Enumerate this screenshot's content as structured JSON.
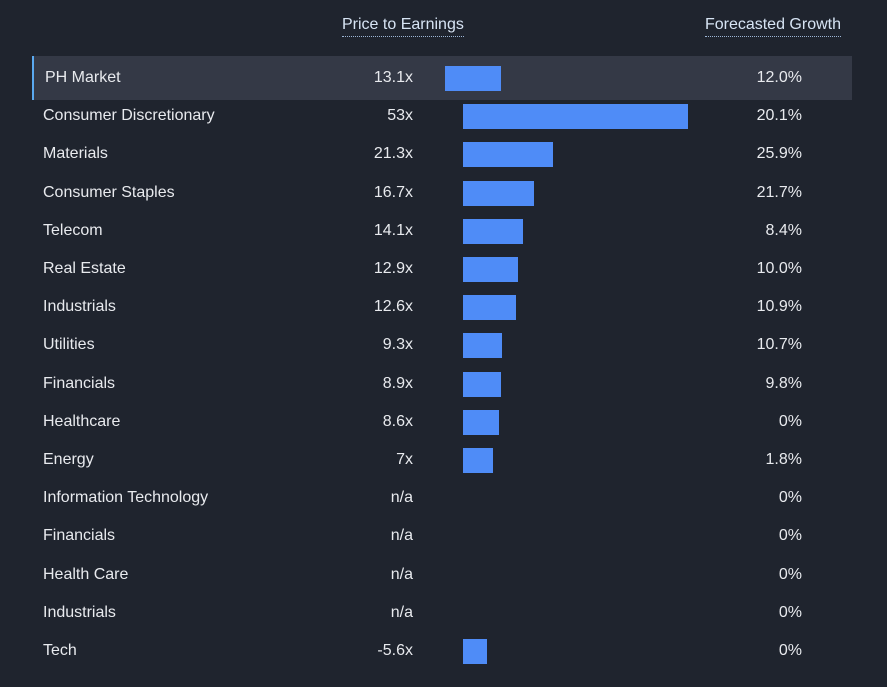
{
  "header": {
    "pe_label": "Price to Earnings",
    "growth_label": "Forecasted Growth"
  },
  "colors": {
    "background": "#1f242e",
    "bar": "#4f8cf7",
    "highlight_row": "#343946",
    "highlight_border": "#5aa9f0"
  },
  "chart_data": {
    "type": "bar",
    "orientation": "horizontal",
    "title": "",
    "columns": [
      "Price to Earnings",
      "Forecasted Growth"
    ],
    "rows": [
      {
        "name": "PH Market",
        "pe": 13.1,
        "pe_label": "13.1x",
        "growth_label": "12.0%",
        "highlight": true
      },
      {
        "name": "Consumer Discretionary",
        "pe": 53,
        "pe_label": "53x",
        "growth_label": "20.1%"
      },
      {
        "name": "Materials",
        "pe": 21.3,
        "pe_label": "21.3x",
        "growth_label": "25.9%"
      },
      {
        "name": "Consumer Staples",
        "pe": 16.7,
        "pe_label": "16.7x",
        "growth_label": "21.7%"
      },
      {
        "name": "Telecom",
        "pe": 14.1,
        "pe_label": "14.1x",
        "growth_label": "8.4%"
      },
      {
        "name": "Real Estate",
        "pe": 12.9,
        "pe_label": "12.9x",
        "growth_label": "10.0%"
      },
      {
        "name": "Industrials",
        "pe": 12.6,
        "pe_label": "12.6x",
        "growth_label": "10.9%"
      },
      {
        "name": "Utilities",
        "pe": 9.3,
        "pe_label": "9.3x",
        "growth_label": "10.7%"
      },
      {
        "name": "Financials",
        "pe": 8.9,
        "pe_label": "8.9x",
        "growth_label": "9.8%"
      },
      {
        "name": "Healthcare",
        "pe": 8.6,
        "pe_label": "8.6x",
        "growth_label": "0%"
      },
      {
        "name": "Energy",
        "pe": 7,
        "pe_label": "7x",
        "growth_label": "1.8%"
      },
      {
        "name": "Information Technology",
        "pe": null,
        "pe_label": "n/a",
        "growth_label": "0%"
      },
      {
        "name": "Financials",
        "pe": null,
        "pe_label": "n/a",
        "growth_label": "0%"
      },
      {
        "name": "Health Care",
        "pe": null,
        "pe_label": "n/a",
        "growth_label": "0%"
      },
      {
        "name": "Industrials",
        "pe": null,
        "pe_label": "n/a",
        "growth_label": "0%"
      },
      {
        "name": "Tech",
        "pe": -5.6,
        "pe_label": "-5.6x",
        "growth_label": "0%"
      }
    ]
  }
}
